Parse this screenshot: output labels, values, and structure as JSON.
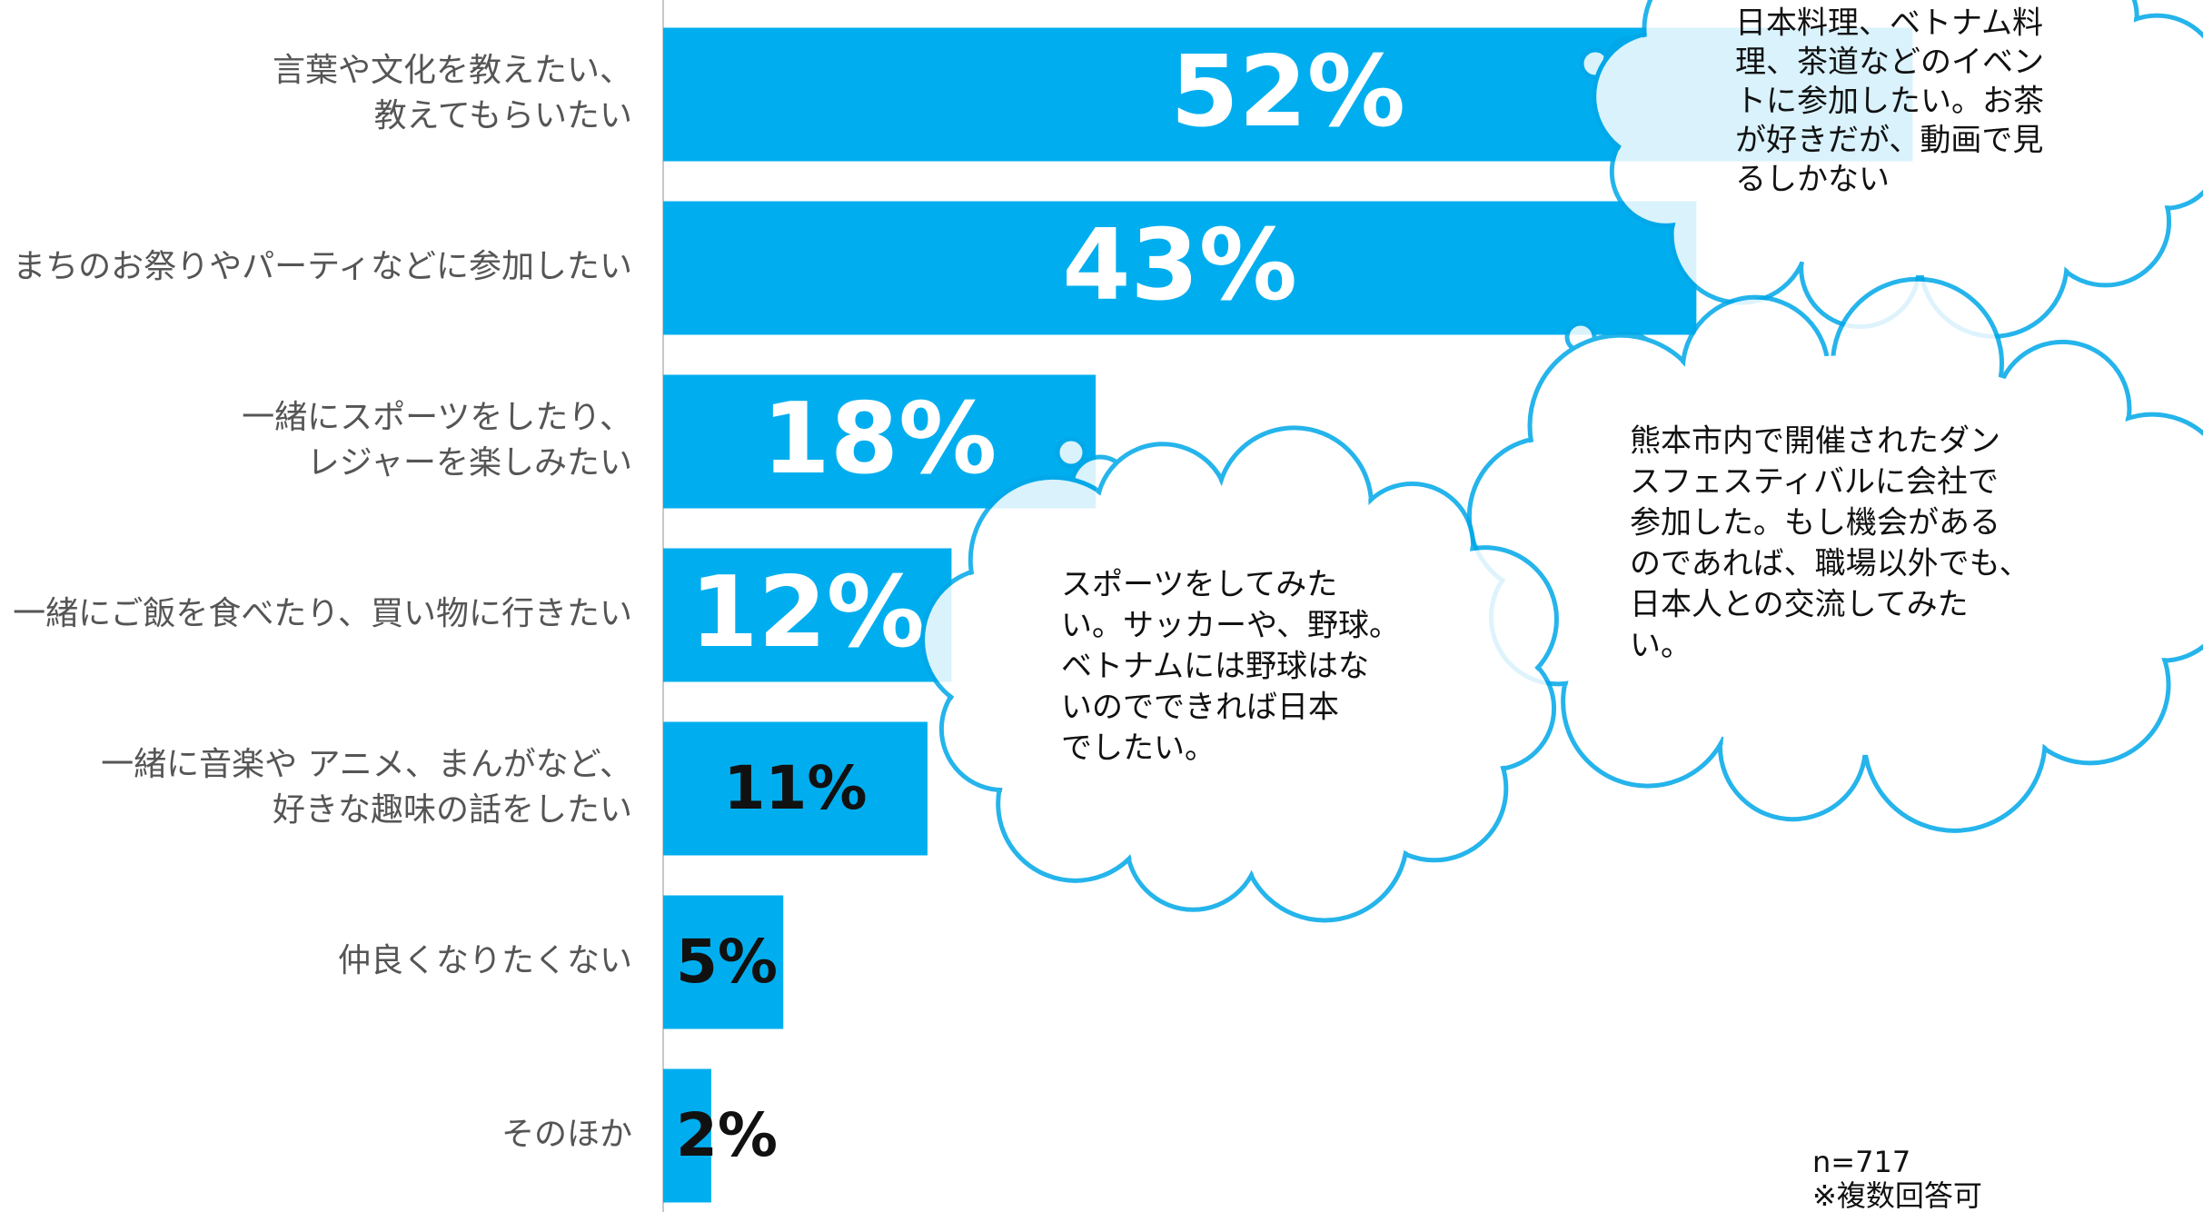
{
  "chart_data": {
    "type": "bar",
    "orientation": "horizontal",
    "categories": [
      [
        "言葉や文化を教えたい、",
        "教えてもらいたい"
      ],
      [
        "まちのお祭りやパーティなどに参加したい"
      ],
      [
        "一緒にスポーツをしたり、",
        "レジャーを楽しみたい"
      ],
      [
        "一緒にご飯を食べたり、買い物に行きたい"
      ],
      [
        "一緒に音楽や アニメ、まんがなど、",
        "好きな趣味の話をしたい"
      ],
      [
        "仲良くなりたくない"
      ],
      [
        "そのほか"
      ]
    ],
    "values": [
      52,
      43,
      18,
      12,
      11,
      5,
      2
    ],
    "value_labels": [
      "52%",
      "43%",
      "18%",
      "12%",
      "11%",
      "5%",
      "2%"
    ],
    "color": "#00aeef",
    "annotations": [
      {
        "lines": [
          "日本料理、ベトナム料",
          "理、茶道などのイベン",
          "トに参加したい。お茶",
          "が好きだが、動画で見",
          "るしかない"
        ]
      },
      {
        "lines": [
          "熊本市内で開催されたダン",
          "スフェスティバルに会社で",
          "参加した。もし機会がある",
          "のであれば、職場以外でも、",
          "日本人との交流してみた",
          "い。"
        ]
      },
      {
        "lines": [
          "スポーツをしてみた",
          "い。サッカーや、野球。",
          "ベトナムには野球はな",
          "いのでできれば日本",
          "でしたい。"
        ]
      }
    ],
    "footnotes": [
      "n=717",
      "※複数回答可"
    ]
  }
}
